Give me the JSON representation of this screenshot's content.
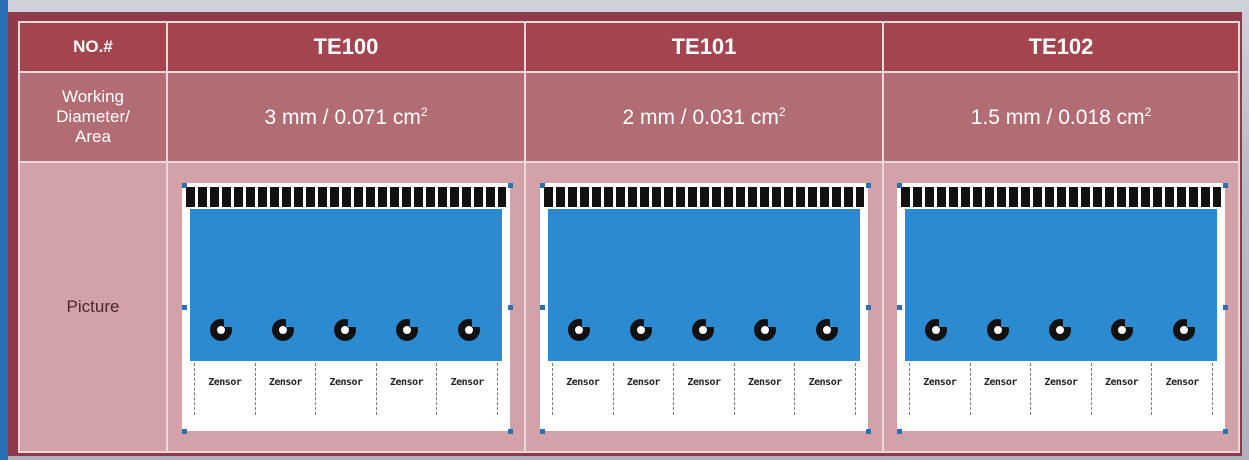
{
  "header": {
    "col0": "NO.#",
    "models": [
      "TE100",
      "TE101",
      "TE102"
    ]
  },
  "area_row": {
    "label_lines": [
      "Working",
      "Diameter/",
      "Area"
    ],
    "values": [
      {
        "main": "3 mm / 0.071 cm",
        "sup": "2"
      },
      {
        "main": "2 mm / 0.031 cm",
        "sup": "2"
      },
      {
        "main": "1.5 mm / 0.018 cm",
        "sup": "2"
      }
    ]
  },
  "picture_row": {
    "label": "Picture",
    "sensor_label": "Zensor"
  },
  "colors": {
    "header_bg": "#a4444f",
    "area_bg": "#b26c74",
    "picture_bg": "#d2a2a8",
    "frame": "#8e3a48",
    "electrode_blue": "#2b8ad0"
  }
}
